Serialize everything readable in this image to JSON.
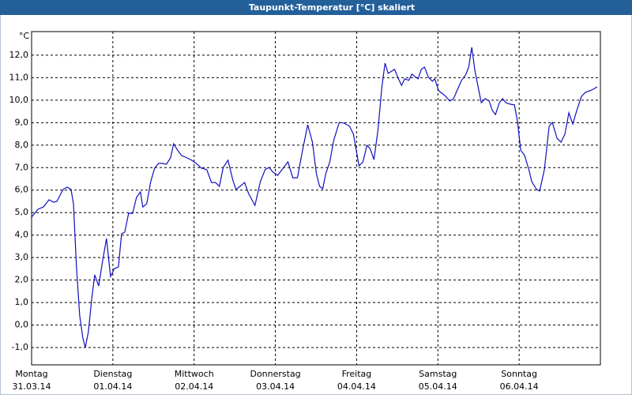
{
  "chart_data": {
    "type": "line",
    "title": "Taupunkt-Temperatur [°C] skaliert",
    "y_unit": "°C",
    "xlim": [
      0,
      7
    ],
    "ylim": [
      -1.77,
      13.05
    ],
    "xticks": [
      {
        "value": 0,
        "label": "Montag"
      },
      {
        "value": 1,
        "label": "Dienstag"
      },
      {
        "value": 2,
        "label": "Mittwoch"
      },
      {
        "value": 3,
        "label": "Donnerstag"
      },
      {
        "value": 4,
        "label": "Freitag"
      },
      {
        "value": 5,
        "label": "Samstag"
      },
      {
        "value": 6,
        "label": "Sonntag"
      }
    ],
    "xtick_dates": [
      "31.03.14",
      "01.04.14",
      "02.04.14",
      "03.04.14",
      "04.04.14",
      "05.04.14",
      "06.04.14"
    ],
    "yticks": [
      {
        "value": -1,
        "label": "-1,0"
      },
      {
        "value": 0,
        "label": "0,0"
      },
      {
        "value": 1,
        "label": "1,0"
      },
      {
        "value": 2,
        "label": "2,0"
      },
      {
        "value": 3,
        "label": "3,0"
      },
      {
        "value": 4,
        "label": "4,0"
      },
      {
        "value": 5,
        "label": "5,0"
      },
      {
        "value": 6,
        "label": "6,0"
      },
      {
        "value": 7,
        "label": "7,0"
      },
      {
        "value": 8,
        "label": "8,0"
      },
      {
        "value": 9,
        "label": "9,0"
      },
      {
        "value": 10,
        "label": "10,0"
      },
      {
        "value": 11,
        "label": "11,0"
      },
      {
        "value": 12,
        "label": "12,0"
      }
    ],
    "grid": true,
    "color": "#1010c0",
    "x": [
      0,
      0.078,
      0.146,
      0.214,
      0.272,
      0.311,
      0.388,
      0.437,
      0.485,
      0.515,
      0.553,
      0.592,
      0.631,
      0.66,
      0.699,
      0.738,
      0.777,
      0.825,
      0.874,
      0.922,
      0.971,
      1.019,
      1.068,
      1.107,
      1.146,
      1.194,
      1.243,
      1.291,
      1.34,
      1.369,
      1.417,
      1.466,
      1.515,
      1.563,
      1.612,
      1.66,
      1.709,
      1.748,
      1.796,
      1.845,
      1.913,
      1.971,
      2.039,
      2.087,
      2.155,
      2.214,
      2.262,
      2.311,
      2.359,
      2.417,
      2.476,
      2.515,
      2.553,
      2.621,
      2.67,
      2.748,
      2.816,
      2.874,
      2.922,
      2.971,
      3.029,
      3.087,
      3.155,
      3.214,
      3.272,
      3.33,
      3.398,
      3.456,
      3.505,
      3.544,
      3.583,
      3.621,
      3.67,
      3.718,
      3.786,
      3.845,
      3.913,
      3.961,
      4.029,
      4.078,
      4.126,
      4.165,
      4.214,
      4.262,
      4.311,
      4.35,
      4.388,
      4.437,
      4.466,
      4.515,
      4.553,
      4.592,
      4.641,
      4.68,
      4.718,
      4.757,
      4.796,
      4.835,
      4.883,
      4.932,
      4.961,
      5.01,
      5.049,
      5.097,
      5.146,
      5.194,
      5.243,
      5.291,
      5.34,
      5.379,
      5.417,
      5.456,
      5.495,
      5.534,
      5.583,
      5.631,
      5.67,
      5.709,
      5.757,
      5.796,
      5.835,
      5.893,
      5.942,
      5.981,
      6.019,
      6.068,
      6.117,
      6.155,
      6.214,
      6.252,
      6.311,
      6.369,
      6.408,
      6.466,
      6.515,
      6.563,
      6.612,
      6.66,
      6.709,
      6.767,
      6.816,
      6.893,
      6.961
    ],
    "values": [
      4.8,
      5.15,
      5.25,
      5.57,
      5.46,
      5.5,
      6.03,
      6.13,
      6.03,
      5.39,
      2.51,
      0.41,
      -0.58,
      -1.0,
      -0.3,
      1.11,
      2.23,
      1.74,
      2.86,
      3.85,
      2.16,
      2.51,
      2.58,
      4.06,
      4.13,
      4.97,
      4.97,
      5.68,
      5.92,
      5.25,
      5.39,
      6.38,
      6.98,
      7.19,
      7.19,
      7.15,
      7.43,
      8.06,
      7.78,
      7.54,
      7.43,
      7.33,
      7.15,
      6.98,
      6.91,
      6.34,
      6.34,
      6.17,
      7.01,
      7.33,
      6.45,
      6.03,
      6.13,
      6.34,
      5.85,
      5.32,
      6.38,
      6.91,
      7.01,
      6.8,
      6.66,
      6.94,
      7.26,
      6.55,
      6.55,
      7.68,
      8.91,
      8.13,
      6.73,
      6.17,
      6.06,
      6.73,
      7.26,
      8.21,
      9.01,
      8.98,
      8.84,
      8.49,
      7.08,
      7.26,
      7.99,
      7.85,
      7.36,
      8.66,
      10.59,
      11.65,
      11.19,
      11.3,
      11.37,
      10.95,
      10.66,
      10.95,
      10.88,
      11.16,
      11.05,
      10.95,
      11.37,
      11.47,
      11.02,
      10.84,
      10.95,
      10.42,
      10.31,
      10.17,
      9.96,
      10.07,
      10.49,
      10.88,
      11.12,
      11.47,
      12.35,
      11.3,
      10.59,
      9.89,
      10.07,
      9.96,
      9.54,
      9.36,
      9.89,
      10.07,
      9.89,
      9.82,
      9.79,
      9.01,
      7.78,
      7.54,
      6.94,
      6.38,
      6.03,
      5.96,
      6.91,
      8.84,
      9.01,
      8.31,
      8.13,
      8.49,
      9.44,
      8.94,
      9.54,
      10.17,
      10.35,
      10.45,
      10.59
    ]
  }
}
